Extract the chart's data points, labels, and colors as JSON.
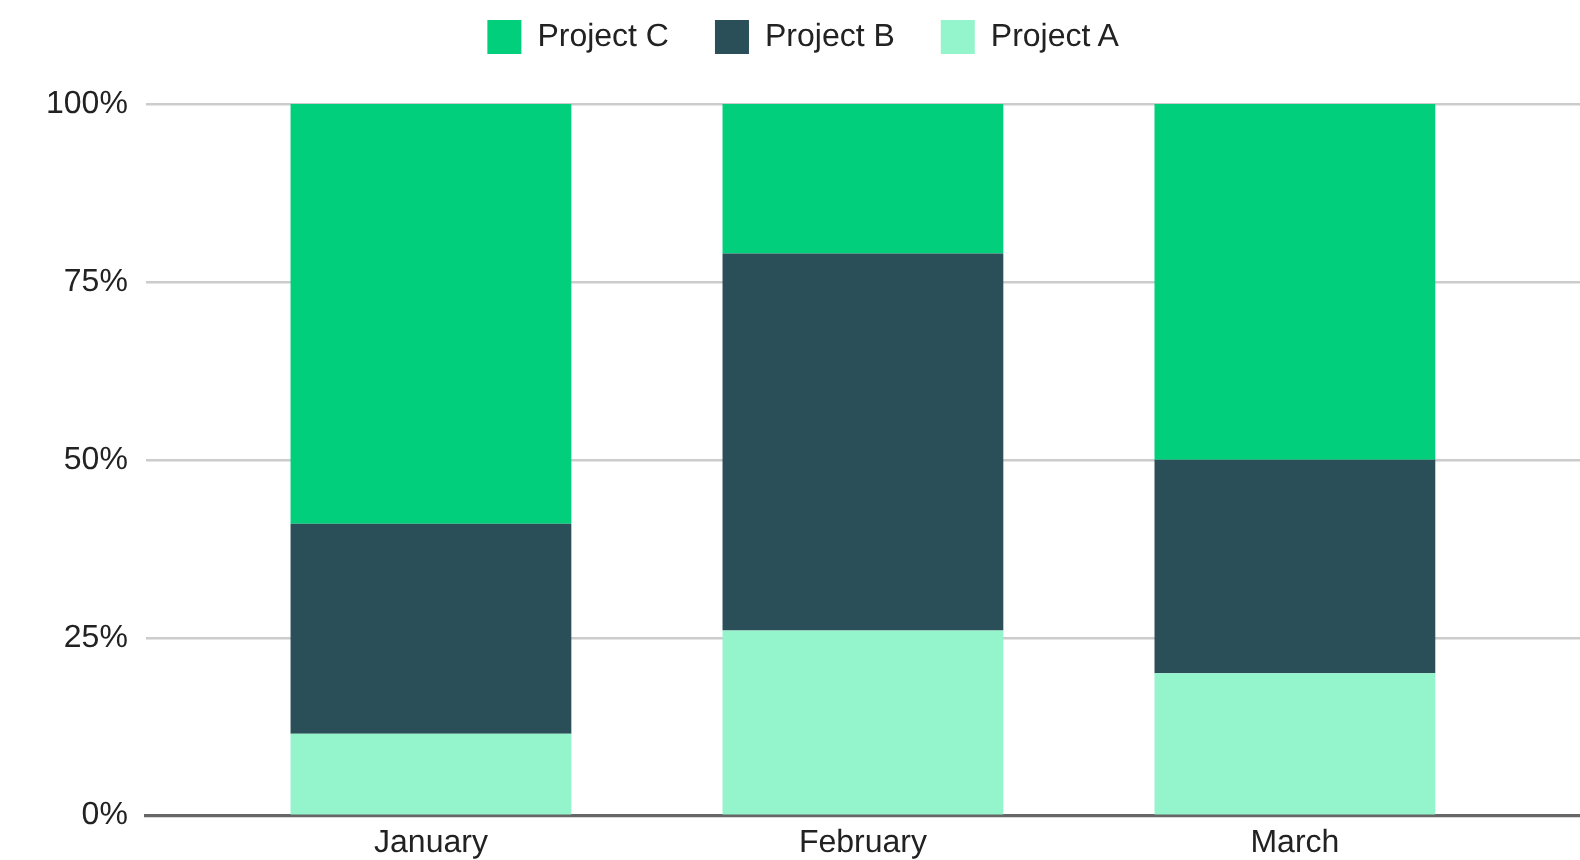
{
  "chart_data": {
    "type": "bar",
    "stacked": true,
    "categories": [
      "January",
      "February",
      "March"
    ],
    "series": [
      {
        "name": "Project A",
        "color": "#94f4cc",
        "values": [
          11.5,
          26,
          20
        ]
      },
      {
        "name": "Project B",
        "color": "#2a4f58",
        "values": [
          29.5,
          53,
          30
        ]
      },
      {
        "name": "Project C",
        "color": "#01cf7b",
        "values": [
          59,
          21,
          50
        ]
      }
    ],
    "ylim": [
      0,
      100
    ],
    "yticks": [
      {
        "value": 0,
        "label": "0%"
      },
      {
        "value": 25,
        "label": "25%"
      },
      {
        "value": 50,
        "label": "50%"
      },
      {
        "value": 75,
        "label": "75%"
      },
      {
        "value": 100,
        "label": "100%"
      }
    ],
    "grid": "y",
    "legend": "top"
  }
}
